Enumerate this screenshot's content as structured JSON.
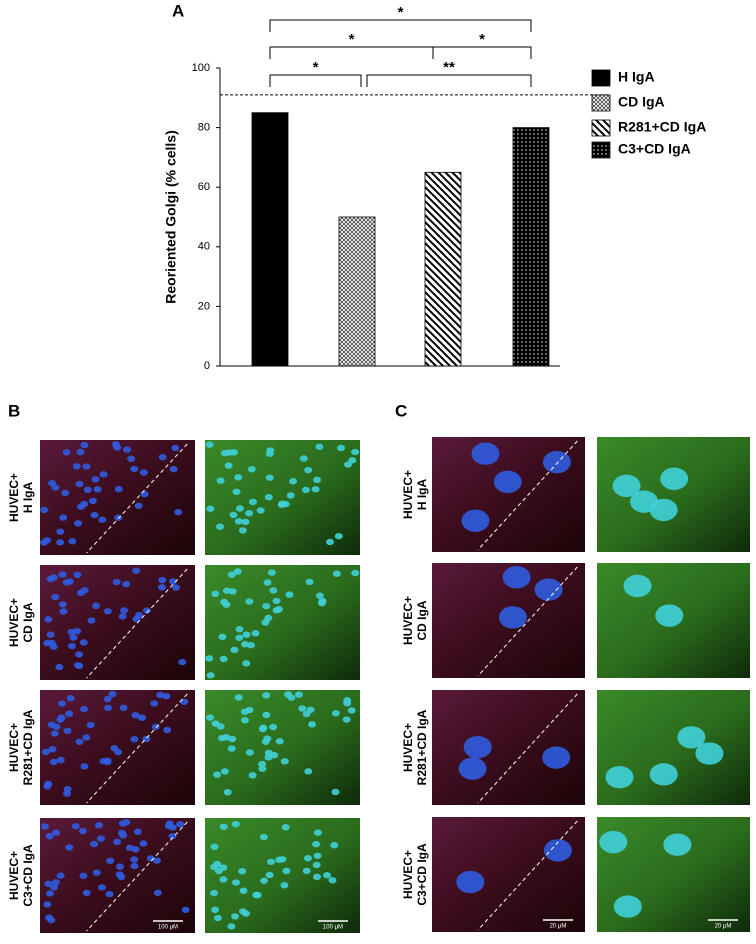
{
  "chart_data": {
    "type": "bar",
    "panel_label": "A",
    "ylabel": "Reoriented Golgi (% cells)",
    "categories": [
      "H IgA",
      "CD IgA",
      "R281+CD IgA",
      "C3+CD IgA"
    ],
    "values": [
      85,
      50,
      65,
      80
    ],
    "fills": [
      "solid",
      "crosshatch",
      "diagonal",
      "dots"
    ],
    "color": "#000000",
    "ylim": [
      0,
      100
    ],
    "yticks": [
      0,
      20,
      40,
      60,
      80,
      100
    ],
    "reference_line": 91,
    "annotations": [
      "*",
      "*",
      "*",
      "*",
      "**"
    ]
  },
  "panel_b": {
    "label": "B",
    "rows": [
      [
        "HUVEC+",
        "H IgA"
      ],
      [
        "HUVEC+",
        "CD IgA"
      ],
      [
        "HUVEC+",
        "R281+CD IgA"
      ],
      [
        "HUVEC+",
        "C3+CD IgA"
      ]
    ],
    "scale_bar": "100 μM"
  },
  "panel_c": {
    "label": "C",
    "rows": [
      [
        "HUVEC+",
        "H IgA"
      ],
      [
        "HUVEC+",
        "CD IgA"
      ],
      [
        "HUVEC+",
        "R281+CD IgA"
      ],
      [
        "HUVEC+",
        "C3+CD IgA"
      ]
    ],
    "scale_bar": "20 μM"
  }
}
